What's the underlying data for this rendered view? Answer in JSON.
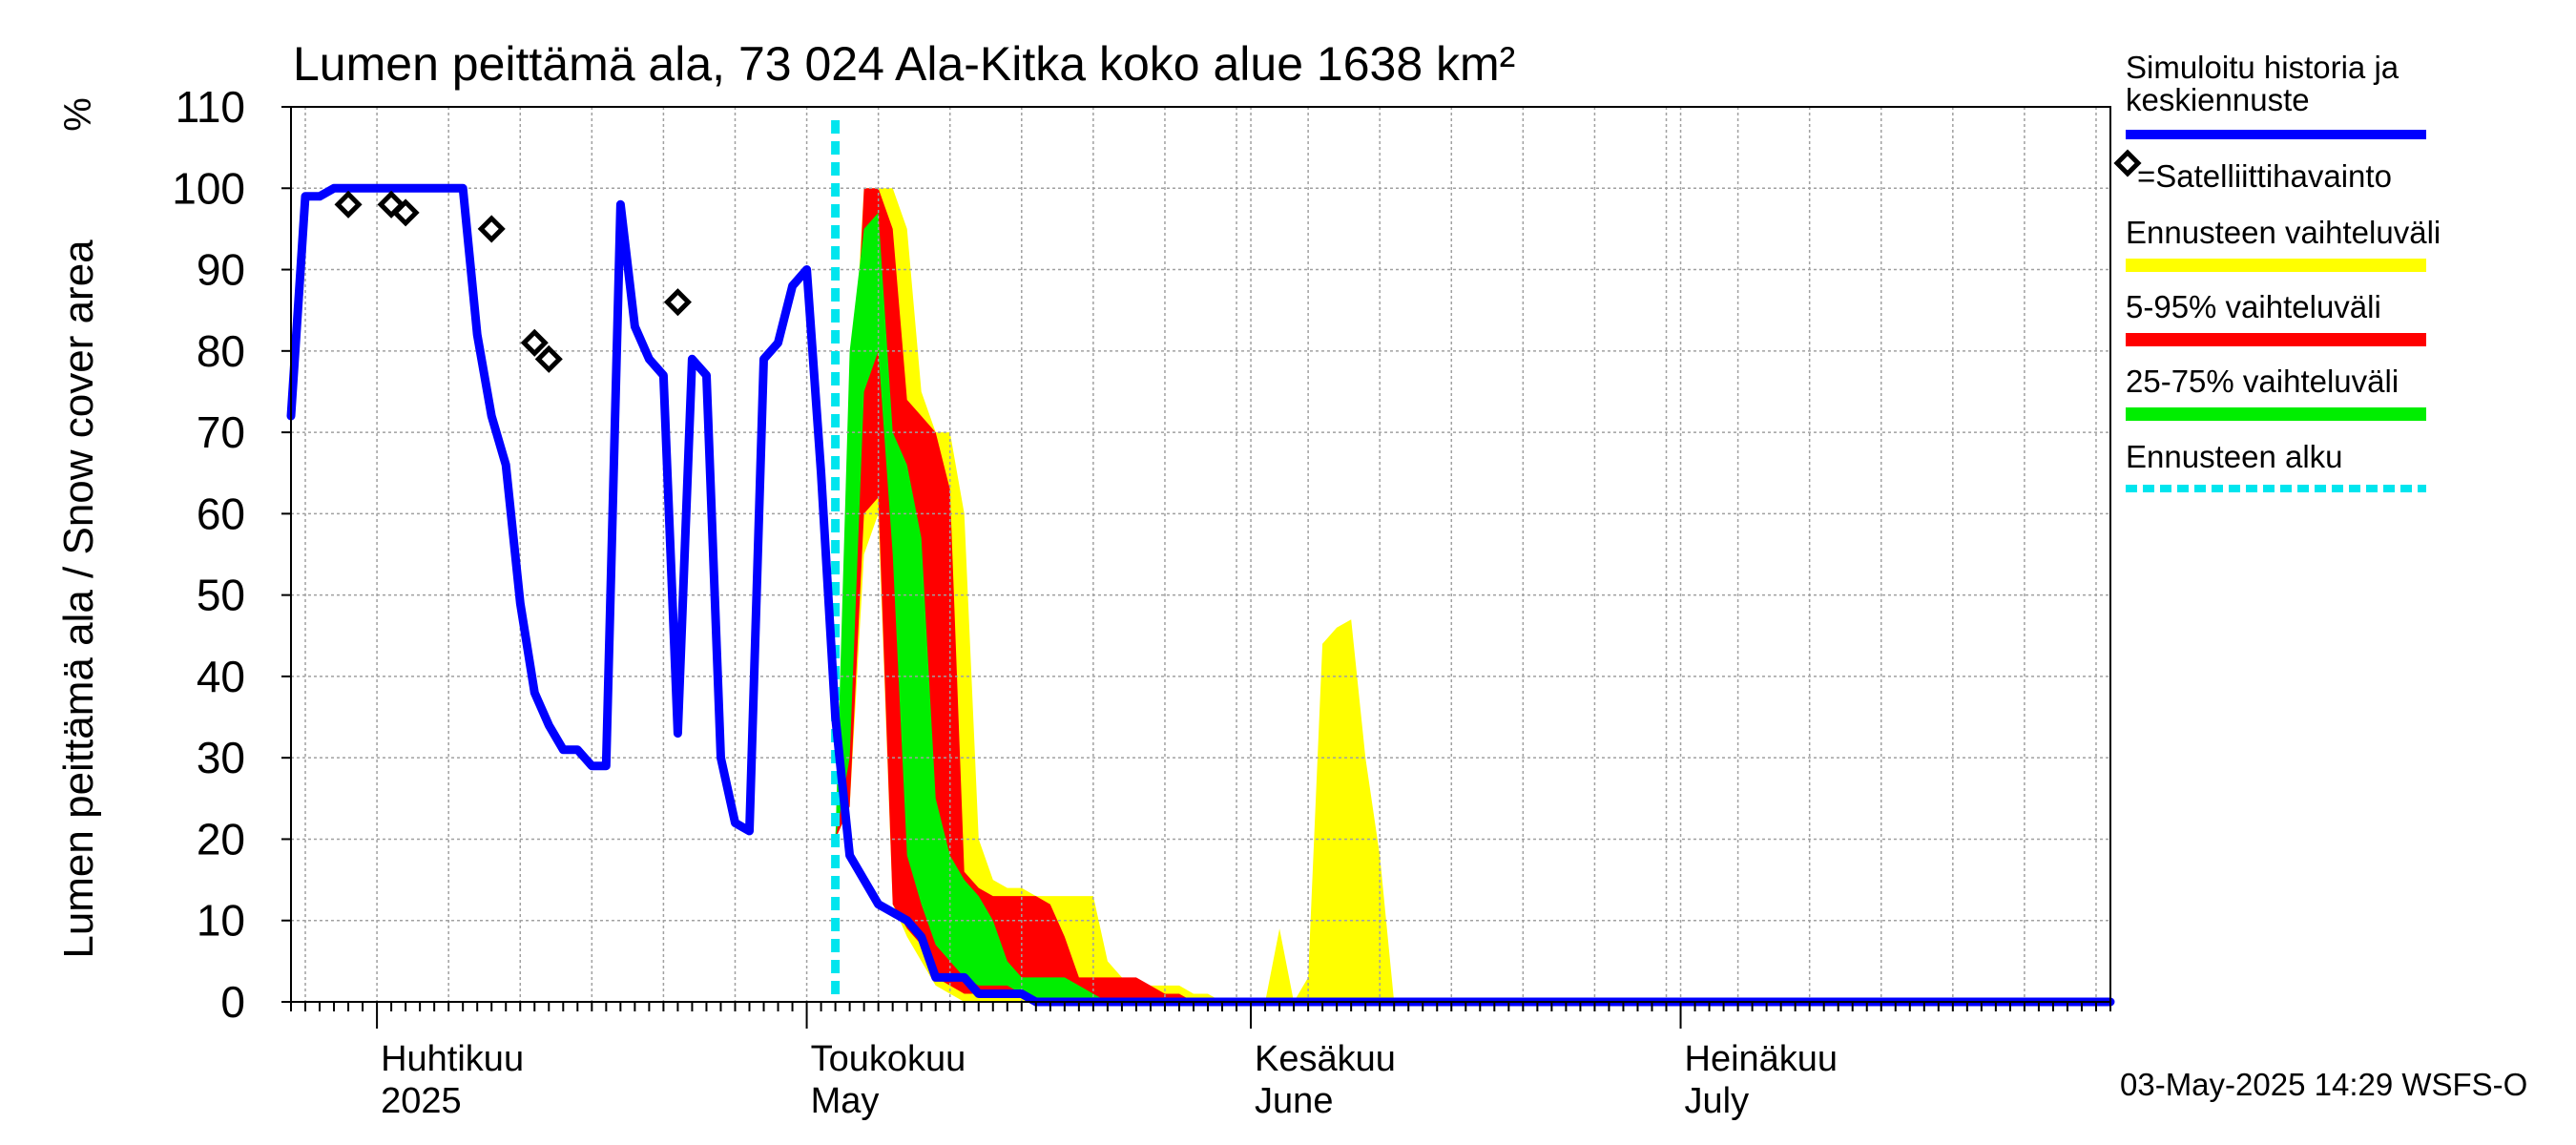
{
  "chart_data": {
    "type": "area",
    "title": "Lumen peittämä ala, 73 024 Ala-Kitka koko alue 1638 km²",
    "ylabel": "Lumen peittämä ala / Snow cover area",
    "yunit": "%",
    "ylim": [
      0,
      110
    ],
    "yticks": [
      0,
      10,
      20,
      30,
      40,
      50,
      60,
      70,
      80,
      90,
      100,
      110
    ],
    "xlim": [
      "2025-03-26",
      "2025-07-31"
    ],
    "grid": true,
    "month_labels": [
      {
        "fi": "Huhtikuu",
        "en": "2025",
        "date": "2025-04-01"
      },
      {
        "fi": "Toukokuu",
        "en": "May",
        "date": "2025-05-01"
      },
      {
        "fi": "Kesäkuu",
        "en": "June",
        "date": "2025-06-01"
      },
      {
        "fi": "Heinäkuu",
        "en": "July",
        "date": "2025-07-01"
      }
    ],
    "forecast_start": "2025-05-03",
    "footer": "03-May-2025 14:29 WSFS-O",
    "legend": [
      {
        "label": "Simuloitu historia ja keskiennuste",
        "color": "#0000ff",
        "kind": "line"
      },
      {
        "label": "=Satelliittihavainto",
        "color": "#000000",
        "kind": "marker"
      },
      {
        "label": "Ennusteen vaihteluväli",
        "color": "#ffff00",
        "kind": "band"
      },
      {
        "label": "5-95% vaihteluväli",
        "color": "#ff0000",
        "kind": "band"
      },
      {
        "label": "25-75% vaihteluväli",
        "color": "#00ee00",
        "kind": "band"
      },
      {
        "label": "Ennusteen alku",
        "color": "#00e5ee",
        "kind": "dashed"
      }
    ],
    "series": [
      {
        "name": "Simuloitu historia ja keskiennuste",
        "color": "#0000ff",
        "x": [
          "2025-03-26",
          "2025-03-27",
          "2025-03-28",
          "2025-03-29",
          "2025-03-30",
          "2025-03-31",
          "2025-04-01",
          "2025-04-02",
          "2025-04-03",
          "2025-04-04",
          "2025-04-05",
          "2025-04-06",
          "2025-04-07",
          "2025-04-08",
          "2025-04-09",
          "2025-04-10",
          "2025-04-11",
          "2025-04-12",
          "2025-04-13",
          "2025-04-14",
          "2025-04-15",
          "2025-04-16",
          "2025-04-17",
          "2025-04-18",
          "2025-04-19",
          "2025-04-20",
          "2025-04-21",
          "2025-04-22",
          "2025-04-23",
          "2025-04-24",
          "2025-04-25",
          "2025-04-26",
          "2025-04-27",
          "2025-04-28",
          "2025-04-29",
          "2025-04-30",
          "2025-05-01",
          "2025-05-02",
          "2025-05-03",
          "2025-05-04",
          "2025-05-05",
          "2025-05-06",
          "2025-05-07",
          "2025-05-08",
          "2025-05-09",
          "2025-05-10",
          "2025-05-11",
          "2025-05-12",
          "2025-05-13",
          "2025-05-14",
          "2025-05-15",
          "2025-05-16",
          "2025-05-17",
          "2025-05-18",
          "2025-05-19",
          "2025-05-20",
          "2025-05-21",
          "2025-05-22",
          "2025-05-25",
          "2025-05-28",
          "2025-07-31"
        ],
        "values": [
          72,
          99,
          99,
          100,
          100,
          100,
          100,
          100,
          100,
          100,
          100,
          100,
          100,
          82,
          72,
          66,
          49,
          38,
          34,
          31,
          31,
          29,
          29,
          98,
          83,
          79,
          77,
          33,
          79,
          77,
          30,
          22,
          21,
          79,
          81,
          88,
          90,
          65,
          35,
          18,
          15,
          12,
          11,
          10,
          8,
          3,
          3,
          3,
          1,
          1,
          1,
          1,
          0,
          0,
          0,
          0,
          0,
          0,
          0,
          0,
          0
        ]
      },
      {
        "name": "=Satelliittihavainto",
        "color": "#000000",
        "x": [
          "2025-03-30",
          "2025-04-02",
          "2025-04-03",
          "2025-04-09",
          "2025-04-12",
          "2025-04-13",
          "2025-04-22"
        ],
        "values": [
          98,
          98,
          97,
          95,
          81,
          79,
          86
        ]
      }
    ],
    "bands": [
      {
        "name": "Ennusteen vaihteluväli",
        "color": "#ffff00",
        "x": [
          "2025-05-02",
          "2025-05-03",
          "2025-05-04",
          "2025-05-05",
          "2025-05-06",
          "2025-05-07",
          "2025-05-08",
          "2025-05-09",
          "2025-05-10",
          "2025-05-11",
          "2025-05-12",
          "2025-05-13",
          "2025-05-14",
          "2025-05-15",
          "2025-05-16",
          "2025-05-17",
          "2025-05-18",
          "2025-05-19",
          "2025-05-20",
          "2025-05-21",
          "2025-05-22",
          "2025-05-23",
          "2025-05-24",
          "2025-05-25",
          "2025-05-26",
          "2025-05-27",
          "2025-05-28",
          "2025-05-29",
          "2025-05-30",
          "2025-05-31",
          "2025-06-01",
          "2025-06-02",
          "2025-06-03",
          "2025-06-04",
          "2025-06-05",
          "2025-06-06",
          "2025-06-07",
          "2025-06-08",
          "2025-06-09",
          "2025-06-10",
          "2025-06-11",
          "2025-06-12",
          "2025-06-13",
          "2025-06-14"
        ],
        "low": [
          21,
          20,
          24,
          55,
          60,
          12,
          8,
          5,
          2,
          1,
          0,
          0,
          0,
          0,
          0,
          0,
          0,
          0,
          0,
          0,
          0,
          0,
          0,
          0,
          0,
          0,
          0,
          0,
          0,
          0,
          0,
          0,
          0,
          0,
          0,
          0,
          0,
          0,
          0,
          0,
          0,
          0,
          0,
          0
        ],
        "high": [
          21,
          20,
          70,
          100,
          100,
          100,
          95,
          75,
          70,
          70,
          60,
          20,
          15,
          14,
          14,
          13,
          13,
          13,
          13,
          13,
          5,
          3,
          2,
          2,
          2,
          2,
          1,
          1,
          0,
          0,
          0,
          0,
          9,
          0,
          3,
          44,
          46,
          47,
          30,
          18,
          0,
          0,
          0,
          0
        ]
      },
      {
        "name": "5-95% vaihteluväli",
        "color": "#ff0000",
        "x": [
          "2025-05-02",
          "2025-05-03",
          "2025-05-04",
          "2025-05-05",
          "2025-05-06",
          "2025-05-07",
          "2025-05-08",
          "2025-05-09",
          "2025-05-10",
          "2025-05-11",
          "2025-05-12",
          "2025-05-13",
          "2025-05-14",
          "2025-05-15",
          "2025-05-16",
          "2025-05-17",
          "2025-05-18",
          "2025-05-19",
          "2025-05-20",
          "2025-05-21",
          "2025-05-22",
          "2025-05-23",
          "2025-05-24",
          "2025-05-25",
          "2025-05-26",
          "2025-05-27",
          "2025-05-28"
        ],
        "low": [
          21,
          20,
          24,
          60,
          62,
          12,
          9,
          7,
          3,
          2,
          1,
          1,
          1,
          1,
          1,
          0,
          0,
          0,
          0,
          0,
          0,
          0,
          0,
          0,
          0,
          0,
          0
        ],
        "high": [
          21,
          20,
          65,
          100,
          100,
          95,
          74,
          72,
          70,
          63,
          16,
          14,
          13,
          13,
          13,
          13,
          12,
          8,
          3,
          3,
          3,
          3,
          3,
          2,
          1,
          1,
          0
        ]
      },
      {
        "name": "25-75% vaihteluväli",
        "color": "#00ee00",
        "x": [
          "2025-05-02",
          "2025-05-03",
          "2025-05-04",
          "2025-05-05",
          "2025-05-06",
          "2025-05-07",
          "2025-05-08",
          "2025-05-09",
          "2025-05-10",
          "2025-05-11",
          "2025-05-12",
          "2025-05-13",
          "2025-05-14",
          "2025-05-15",
          "2025-05-16",
          "2025-05-17",
          "2025-05-18",
          "2025-05-19",
          "2025-05-20",
          "2025-05-21",
          "2025-05-22",
          "2025-05-23"
        ],
        "low": [
          21,
          20,
          30,
          75,
          80,
          55,
          18,
          12,
          7,
          5,
          3,
          2,
          2,
          2,
          1,
          0,
          0,
          0,
          0,
          0,
          0,
          0
        ],
        "high": [
          21,
          20,
          80,
          95,
          97,
          70,
          66,
          57,
          25,
          18,
          15,
          13,
          10,
          5,
          3,
          3,
          3,
          3,
          2,
          1,
          0,
          0
        ]
      }
    ]
  }
}
